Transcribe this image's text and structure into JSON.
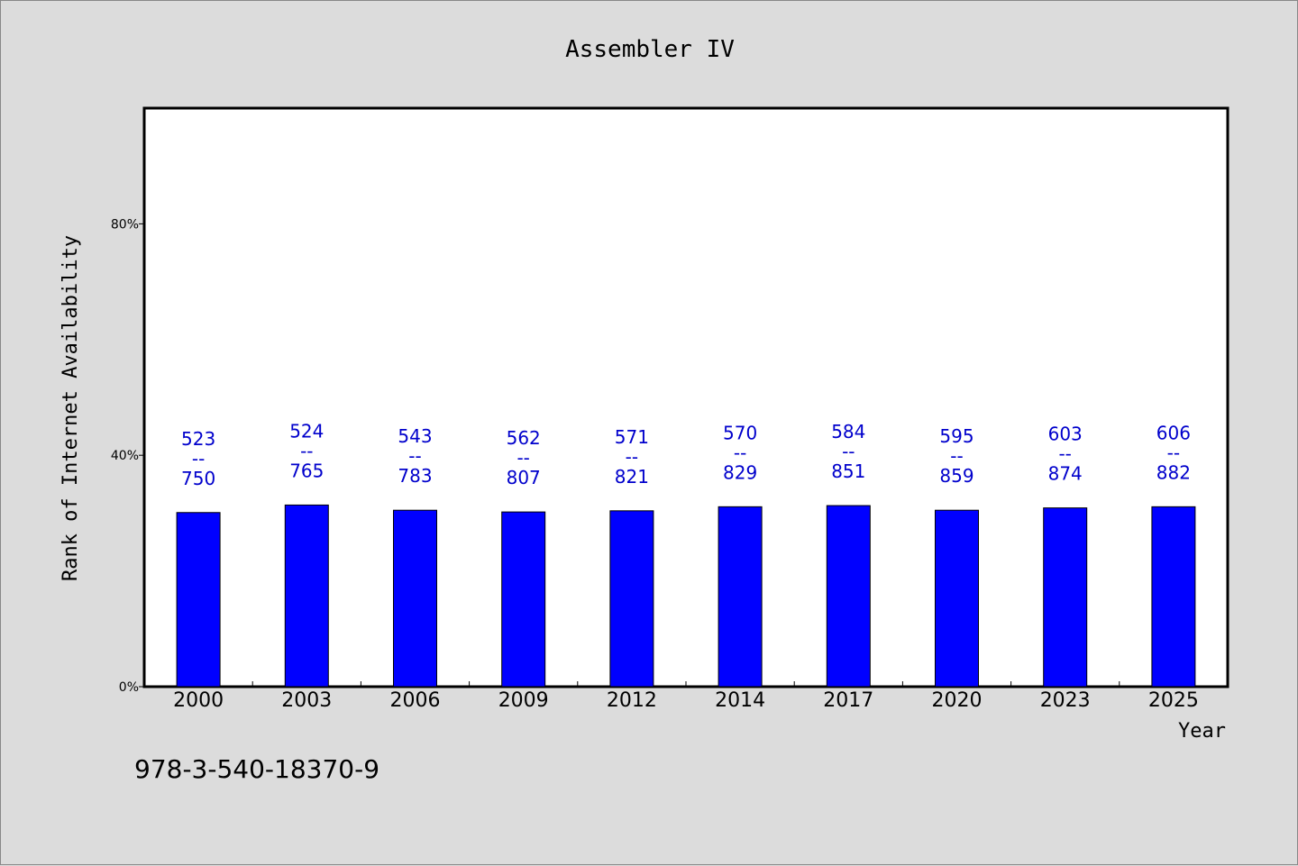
{
  "chart_data": {
    "type": "bar",
    "title": "Assembler IV",
    "xlabel": "Year",
    "ylabel": "Rank of Internet Availability",
    "ylim": [
      0,
      100
    ],
    "yticks": [
      0,
      40,
      80
    ],
    "ytick_labels": [
      "0%",
      "40%",
      "80%"
    ],
    "categories": [
      "2000",
      "2003",
      "2006",
      "2009",
      "2012",
      "2014",
      "2017",
      "2020",
      "2023",
      "2025"
    ],
    "values": [
      30.1,
      31.4,
      30.5,
      30.2,
      30.4,
      31.1,
      31.3,
      30.5,
      30.9,
      31.1
    ],
    "numerators": [
      "523",
      "524",
      "543",
      "562",
      "571",
      "570",
      "584",
      "595",
      "603",
      "606"
    ],
    "denominators": [
      "750",
      "765",
      "783",
      "807",
      "821",
      "829",
      "851",
      "859",
      "874",
      "882"
    ],
    "label_separator": "--",
    "bar_color": "#0000ff",
    "label_color": "#0000cc",
    "plot_background": "#ffffff",
    "page_background": "#dcdcdc",
    "grid": false,
    "legend": "none"
  },
  "footnote": "978-3-540-18370-9"
}
